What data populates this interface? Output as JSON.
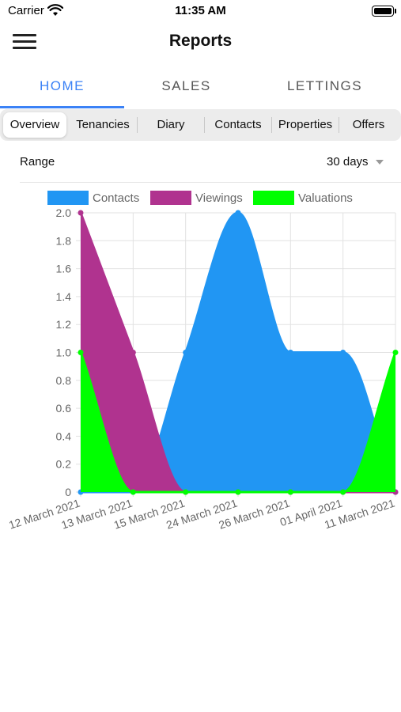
{
  "status_bar": {
    "carrier": "Carrier",
    "time": "11:35 AM"
  },
  "header": {
    "title": "Reports",
    "menu_icon": "hamburger-menu-icon"
  },
  "top_tabs": [
    {
      "label": "HOME",
      "active": true
    },
    {
      "label": "SALES",
      "active": false
    },
    {
      "label": "LETTINGS",
      "active": false
    }
  ],
  "segments": [
    {
      "label": "Overview",
      "active": true
    },
    {
      "label": "Tenancies",
      "active": false
    },
    {
      "label": "Diary",
      "active": false
    },
    {
      "label": "Contacts",
      "active": false
    },
    {
      "label": "Properties",
      "active": false
    },
    {
      "label": "Offers",
      "active": false
    }
  ],
  "range": {
    "label": "Range",
    "value": "30 days"
  },
  "colors": {
    "accent": "#3b82f6",
    "contacts": "#2196f3",
    "viewings": "#b0338f",
    "valuations": "#00ff00"
  },
  "chart_data": {
    "type": "area",
    "categories": [
      "12 March 2021",
      "13 March 2021",
      "15 March 2021",
      "24 March 2021",
      "26 March 2021",
      "01 April 2021",
      "11 March 2021"
    ],
    "series": [
      {
        "name": "Contacts",
        "values": [
          0,
          0,
          1,
          2,
          1,
          1,
          0
        ]
      },
      {
        "name": "Viewings",
        "values": [
          2,
          1,
          0,
          0,
          0,
          0,
          0
        ]
      },
      {
        "name": "Valuations",
        "values": [
          1,
          0,
          0,
          0,
          0,
          0,
          1
        ]
      }
    ],
    "yticks": [
      "0",
      "0.2",
      "0.4",
      "0.6",
      "0.8",
      "1.0",
      "1.2",
      "1.4",
      "1.6",
      "1.8",
      "2.0"
    ],
    "ylim": [
      0,
      2
    ],
    "legend": "top",
    "grid": true
  }
}
